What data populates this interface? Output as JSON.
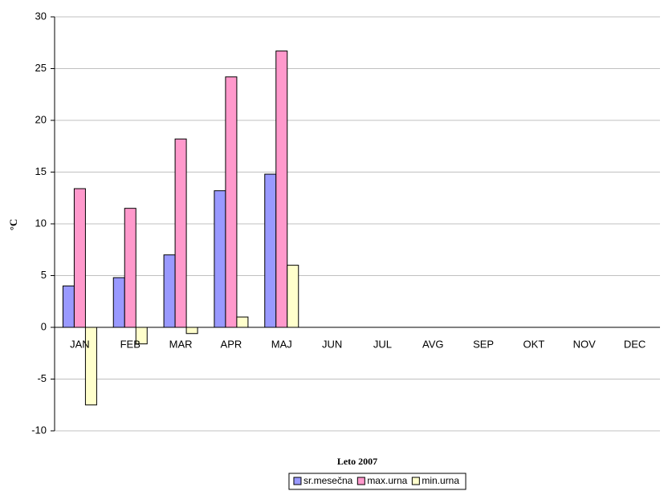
{
  "chart_data": {
    "type": "bar",
    "x_label": "Leto 2007",
    "y_label": "°C",
    "categories": [
      "JAN",
      "FEB",
      "MAR",
      "APR",
      "MAJ",
      "JUN",
      "JUL",
      "AVG",
      "SEP",
      "OKT",
      "NOV",
      "DEC"
    ],
    "series": [
      {
        "name": "sr.mesečna",
        "color": "#9999ff",
        "values": [
          4.0,
          4.8,
          7.0,
          13.2,
          14.8,
          null,
          null,
          null,
          null,
          null,
          null,
          null
        ]
      },
      {
        "name": "max.urna",
        "color": "#ff99cc",
        "values": [
          13.4,
          11.5,
          18.2,
          24.2,
          26.7,
          null,
          null,
          null,
          null,
          null,
          null,
          null
        ]
      },
      {
        "name": "min.urna",
        "color": "#ffffcc",
        "values": [
          -7.5,
          -1.6,
          -0.6,
          1.0,
          6.0,
          null,
          null,
          null,
          null,
          null,
          null,
          null
        ]
      }
    ],
    "ylim": [
      -10,
      30
    ],
    "yticks": [
      -10,
      -5,
      0,
      5,
      10,
      15,
      20,
      25,
      30
    ],
    "grid": true,
    "legend": "bottom"
  }
}
